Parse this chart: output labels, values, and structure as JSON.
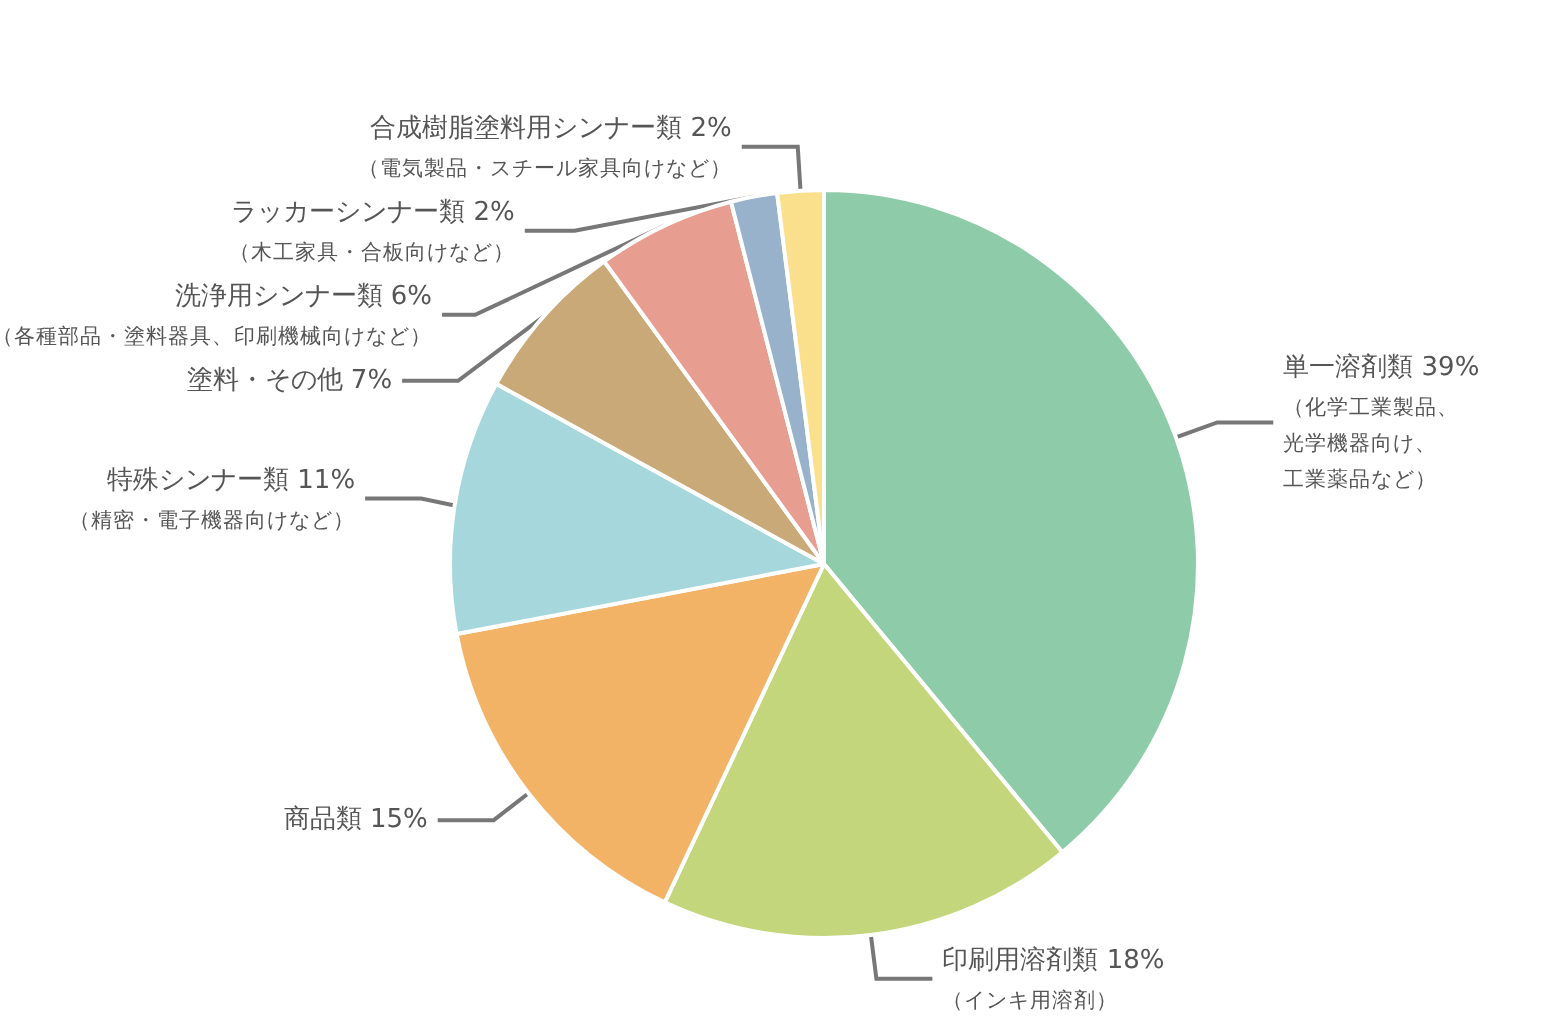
{
  "chart_data": {
    "type": "pie",
    "categories": [
      "単一溶剤類",
      "印刷用溶剤類",
      "商品類",
      "特殊シンナー類",
      "塗料・その他",
      "洗浄用シンナー類",
      "ラッカーシンナー類",
      "合成樹脂塗料用シンナー類"
    ],
    "values": [
      39,
      18,
      15,
      11,
      7,
      6,
      2,
      2
    ],
    "value_labels": [
      "39%",
      "18%",
      "15%",
      "11%",
      "7%",
      "6%",
      "2%",
      "2%"
    ],
    "colors": [
      "#8ecca9",
      "#c4d67b",
      "#f3b367",
      "#a5d7dc",
      "#c8a977",
      "#e79d8f",
      "#98b2cc",
      "#fae08d"
    ],
    "annotations": [
      {
        "text": "（化学工業製品、光学機器向け、工業薬品など）",
        "x": "単一溶剤類"
      },
      {
        "text": "（インキ用溶剤）",
        "x": "印刷用溶剤類"
      },
      {
        "text": "（精密・電子機器向けなど）",
        "x": "特殊シンナー類"
      },
      {
        "text": "（各種部品・塗料器具、印刷機械向けなど）",
        "x": "洗浄用シンナー類"
      },
      {
        "text": "（木工家具・合板向けなど）",
        "x": "ラッカーシンナー類"
      },
      {
        "text": "（電気製品・スチール家具向けなど）",
        "x": "合成樹脂塗料用シンナー類"
      }
    ]
  }
}
